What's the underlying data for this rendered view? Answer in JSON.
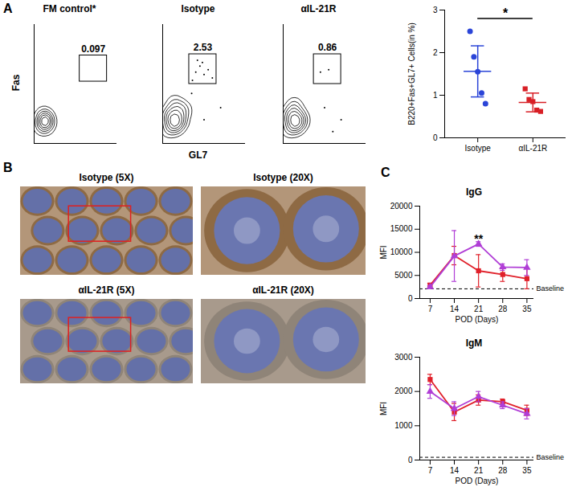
{
  "chart_data": [
    {
      "type": "contour",
      "panel": "A",
      "title": "FM control*",
      "y_label": "Fas",
      "xlim": [
        0,
        1
      ],
      "ylim": [
        0,
        1
      ],
      "tick_labels": false,
      "points": [
        [
          0.08,
          0.12
        ],
        [
          0.1,
          0.2
        ],
        [
          0.14,
          0.16
        ],
        [
          0.12,
          0.24
        ],
        [
          0.16,
          0.22
        ],
        [
          0.1,
          0.15
        ],
        [
          0.13,
          0.19
        ],
        [
          0.18,
          0.17
        ],
        [
          0.11,
          0.27
        ],
        [
          0.15,
          0.12
        ],
        [
          0.12,
          0.18
        ],
        [
          0.14,
          0.21
        ]
      ],
      "gate": {
        "x": [
          0.55,
          0.88
        ],
        "y": [
          0.52,
          0.74
        ]
      },
      "gate_value": 0.097
    },
    {
      "type": "contour",
      "title": "Isotype",
      "x_label": "GL7",
      "xlim": [
        0,
        1
      ],
      "ylim": [
        0,
        1
      ],
      "tick_labels": false,
      "points": [
        [
          0.06,
          0.1
        ],
        [
          0.1,
          0.2
        ],
        [
          0.15,
          0.15
        ],
        [
          0.12,
          0.3
        ],
        [
          0.2,
          0.25
        ],
        [
          0.08,
          0.18
        ],
        [
          0.18,
          0.12
        ],
        [
          0.25,
          0.2
        ],
        [
          0.14,
          0.36
        ],
        [
          0.22,
          0.32
        ],
        [
          0.1,
          0.26
        ],
        [
          0.16,
          0.22
        ],
        [
          0.12,
          0.14
        ],
        [
          0.2,
          0.18
        ],
        [
          0.28,
          0.28
        ],
        [
          0.06,
          0.24
        ]
      ],
      "dots": [
        [
          0.4,
          0.6
        ],
        [
          0.45,
          0.65
        ],
        [
          0.5,
          0.58
        ],
        [
          0.55,
          0.62
        ],
        [
          0.42,
          0.7
        ],
        [
          0.6,
          0.55
        ],
        [
          0.36,
          0.53
        ],
        [
          0.48,
          0.68
        ],
        [
          0.7,
          0.3
        ],
        [
          0.5,
          0.2
        ],
        [
          0.35,
          0.42
        ]
      ],
      "gate": {
        "x": [
          0.32,
          0.65
        ],
        "y": [
          0.5,
          0.75
        ]
      },
      "gate_value": 2.53
    },
    {
      "type": "contour",
      "title": "αIL-21R",
      "xlim": [
        0,
        1
      ],
      "ylim": [
        0,
        1
      ],
      "tick_labels": false,
      "points": [
        [
          0.06,
          0.1
        ],
        [
          0.1,
          0.2
        ],
        [
          0.15,
          0.15
        ],
        [
          0.12,
          0.3
        ],
        [
          0.2,
          0.25
        ],
        [
          0.08,
          0.18
        ],
        [
          0.18,
          0.12
        ],
        [
          0.25,
          0.2
        ],
        [
          0.14,
          0.34
        ],
        [
          0.1,
          0.26
        ],
        [
          0.16,
          0.22
        ],
        [
          0.12,
          0.14
        ],
        [
          0.2,
          0.18
        ],
        [
          0.06,
          0.24
        ]
      ],
      "dots": [
        [
          0.45,
          0.6
        ],
        [
          0.55,
          0.62
        ],
        [
          0.7,
          0.2
        ],
        [
          0.6,
          0.1
        ],
        [
          0.5,
          0.3
        ]
      ],
      "gate": {
        "x": [
          0.37,
          0.7
        ],
        "y": [
          0.5,
          0.75
        ]
      },
      "gate_value": 0.86
    },
    {
      "type": "scatter",
      "y_label": "B220+Fas+GL7+ Cells(in %)",
      "ylim": [
        0,
        3
      ],
      "yticks": [
        0,
        1,
        2,
        3
      ],
      "series": [
        {
          "name": "Isotype",
          "color": "#2b45d8",
          "marker": "circle",
          "values": [
            2.5,
            1.9,
            1.55,
            1.05,
            0.8
          ],
          "mean": 1.56,
          "sd": 0.6
        },
        {
          "name": "αIL-21R",
          "color": "#d81f26",
          "marker": "square",
          "values": [
            1.15,
            0.9,
            0.85,
            0.65,
            0.62
          ],
          "mean": 0.83,
          "sd": 0.22
        }
      ],
      "significance": {
        "text": "*",
        "y": 2.8
      }
    },
    {
      "type": "image",
      "panel": "B",
      "title": "Isotype (5X)"
    },
    {
      "type": "image",
      "title": "Isotype (20X)"
    },
    {
      "type": "image",
      "title": "αIL-21R (5X)"
    },
    {
      "type": "image",
      "title": "αIL-21R (20X)"
    },
    {
      "type": "line",
      "panel": "C",
      "title": "IgG",
      "x_label": "POD (Days)",
      "y_label": "MFI",
      "x": [
        7,
        14,
        21,
        28,
        35
      ],
      "xlim": [
        4,
        37
      ],
      "xticks": [
        7,
        14,
        21,
        28,
        35
      ],
      "ylim": [
        0,
        20000
      ],
      "yticks": [
        0,
        5000,
        10000,
        15000,
        20000
      ],
      "baseline": {
        "label": "Baseline",
        "value": 2100
      },
      "series": [
        {
          "color": "#e0202a",
          "marker": "square",
          "values": [
            2900,
            9300,
            6000,
            5200,
            4300
          ],
          "errors": [
            400,
            2000,
            3500,
            1500,
            2200
          ]
        },
        {
          "color": "#b03ed6",
          "marker": "triangle",
          "values": [
            2500,
            9200,
            11800,
            6800,
            6700
          ],
          "errors": [
            300,
            5500,
            500,
            700,
            1700
          ]
        }
      ],
      "significance": {
        "text": "**",
        "x": 21,
        "y": 12500
      }
    },
    {
      "type": "line",
      "title": "IgM",
      "x_label": "POD (Days)",
      "y_label": "MFI",
      "x": [
        7,
        14,
        21,
        28,
        35
      ],
      "xlim": [
        4,
        37
      ],
      "xticks": [
        7,
        14,
        21,
        28,
        35
      ],
      "ylim": [
        0,
        3000
      ],
      "yticks": [
        0,
        1000,
        2000,
        3000
      ],
      "baseline": {
        "label": "Baseline",
        "value": 80
      },
      "series": [
        {
          "color": "#e0202a",
          "marker": "square",
          "values": [
            2350,
            1400,
            1750,
            1700,
            1450
          ],
          "errors": [
            150,
            250,
            150,
            80,
            150
          ]
        },
        {
          "color": "#b03ed6",
          "marker": "triangle",
          "values": [
            2000,
            1500,
            1850,
            1600,
            1350
          ],
          "errors": [
            200,
            200,
            150,
            100,
            150
          ]
        }
      ]
    }
  ]
}
